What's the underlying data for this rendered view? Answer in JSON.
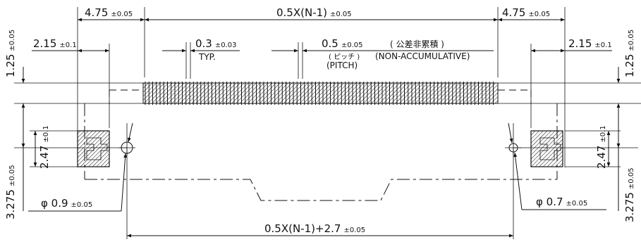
{
  "dimensions": {
    "top_left_width": "4.75",
    "top_left_width_tol": "±0.05",
    "top_center": "0.5X(N-1)",
    "top_center_tol": "±0.05",
    "top_right_width": "4.75",
    "top_right_width_tol": "±0.05",
    "left_offset": "2.15",
    "left_offset_tol": "±0.1",
    "right_offset": "2.15",
    "right_offset_tol": "±0.1",
    "pin_width": "0.3",
    "pin_width_tol": "±0.03",
    "pin_width_note": "TYP.",
    "pitch": "0.5",
    "pitch_tol": "±0.05",
    "pitch_jp": "( 公差非累積 )",
    "pitch_jp_sub": "( ピッチ )",
    "pitch_en_sub": "(PITCH)",
    "non_accum": "(NON-ACCUMULATIVE)",
    "left_height_top": "1.25",
    "left_height_top_tol": "±0.05",
    "right_height_top": "1.25",
    "right_height_top_tol": "±0.05",
    "left_pad_height": "2.47",
    "left_pad_height_tol": "±0.1",
    "right_pad_height": "2.47",
    "right_pad_height_tol": "±0.1",
    "left_height_bottom": "3.275",
    "left_height_bottom_tol": "±0.05",
    "right_height_bottom": "3.275",
    "right_height_bottom_tol": "±0.05",
    "left_hole": "φ 0.9",
    "left_hole_tol": "±0.05",
    "right_hole": "φ 0.7",
    "right_hole_tol": "±0.05",
    "bottom_span": "0.5X(N-1)+2.7",
    "bottom_span_tol": "±0.05"
  }
}
